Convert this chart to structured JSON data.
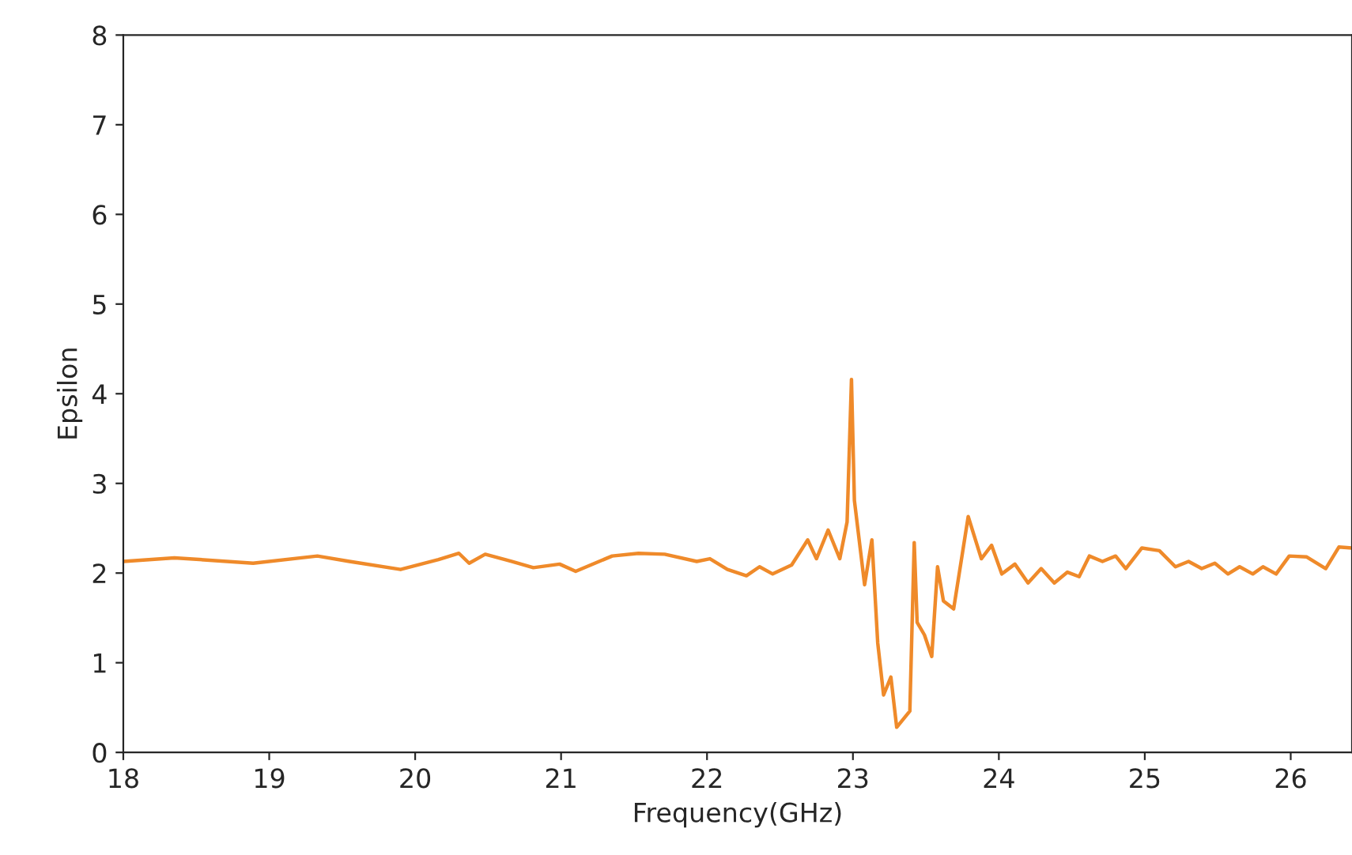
{
  "chart_data": {
    "type": "line",
    "xlabel": "Frequency(GHz)",
    "ylabel": "Epsilon",
    "xlim": [
      18,
      26.42
    ],
    "xticks": [
      18,
      19,
      20,
      21,
      22,
      23,
      24,
      25,
      26
    ],
    "ylim": [
      0,
      8
    ],
    "yticks": [
      0,
      1,
      2,
      3,
      4,
      5,
      6,
      7,
      8
    ],
    "grid": false,
    "legend": false,
    "series": [
      {
        "color": "#ef8a2a",
        "x": [
          18.0,
          18.35,
          18.89,
          19.33,
          19.55,
          19.9,
          20.16,
          20.3,
          20.37,
          20.48,
          20.66,
          20.81,
          20.99,
          21.1,
          21.35,
          21.53,
          21.71,
          21.93,
          22.02,
          22.14,
          22.27,
          22.36,
          22.45,
          22.58,
          22.69,
          22.75,
          22.83,
          22.91,
          22.96,
          22.99,
          23.01,
          23.08,
          23.13,
          23.17,
          23.21,
          23.26,
          23.3,
          23.39,
          23.42,
          23.44,
          23.49,
          23.54,
          23.58,
          23.62,
          23.69,
          23.79,
          23.88,
          23.95,
          24.02,
          24.11,
          24.2,
          24.29,
          24.38,
          24.47,
          24.55,
          24.62,
          24.71,
          24.8,
          24.87,
          24.98,
          25.1,
          25.21,
          25.3,
          25.39,
          25.48,
          25.57,
          25.65,
          25.74,
          25.81,
          25.9,
          25.99,
          26.11,
          26.24,
          26.33,
          26.42
        ],
        "values": [
          2.13,
          2.17,
          2.11,
          2.19,
          2.13,
          2.04,
          2.15,
          2.22,
          2.11,
          2.21,
          2.13,
          2.06,
          2.1,
          2.02,
          2.19,
          2.22,
          2.21,
          2.13,
          2.16,
          2.04,
          1.97,
          2.07,
          1.99,
          2.09,
          2.37,
          2.16,
          2.48,
          2.16,
          2.57,
          4.16,
          2.81,
          1.87,
          2.37,
          1.22,
          0.64,
          0.84,
          0.28,
          0.46,
          2.34,
          1.45,
          1.31,
          1.07,
          2.07,
          1.69,
          1.6,
          2.63,
          2.16,
          2.31,
          1.99,
          2.1,
          1.89,
          2.05,
          1.89,
          2.01,
          1.96,
          2.19,
          2.13,
          2.19,
          2.05,
          2.28,
          2.25,
          2.07,
          2.13,
          2.05,
          2.11,
          1.99,
          2.07,
          1.99,
          2.07,
          1.99,
          2.19,
          2.18,
          2.05,
          2.29,
          2.28
        ]
      }
    ]
  }
}
